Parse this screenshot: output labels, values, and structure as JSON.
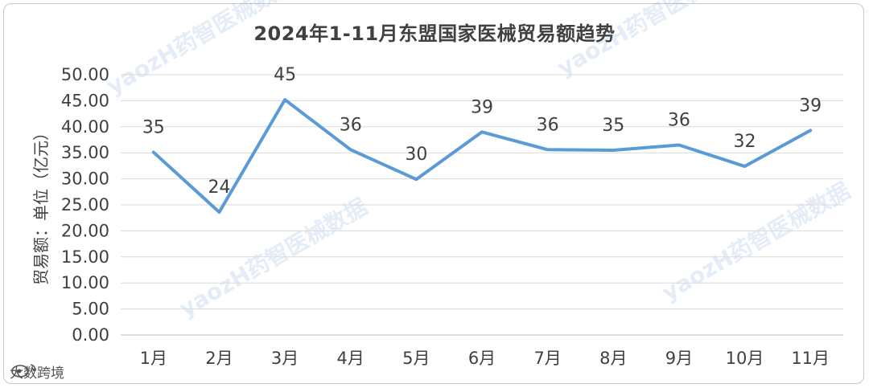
{
  "chart_data": {
    "type": "line",
    "title": "2024年1-11月东盟国家医械贸易额趋势",
    "ylabel": "贸易额：单位（亿元）",
    "xlabel": "",
    "categories": [
      "1月",
      "2月",
      "3月",
      "4月",
      "5月",
      "6月",
      "7月",
      "8月",
      "9月",
      "10月",
      "11月"
    ],
    "values": [
      35.1,
      23.6,
      45.2,
      35.6,
      29.9,
      39.0,
      35.6,
      35.5,
      36.5,
      32.4,
      39.3
    ],
    "data_labels": [
      "35",
      "24",
      "45",
      "36",
      "30",
      "39",
      "36",
      "35",
      "36",
      "32",
      "39"
    ],
    "y_ticks": [
      "0.00",
      "5.00",
      "10.00",
      "15.00",
      "20.00",
      "25.00",
      "30.00",
      "35.00",
      "40.00",
      "45.00",
      "50.00"
    ],
    "ylim": [
      0,
      50
    ],
    "grid": true,
    "legend": "none",
    "line_color": "#5b9bd5"
  },
  "watermark": "yaozH药智医械数据",
  "source_label": "大数跨境"
}
